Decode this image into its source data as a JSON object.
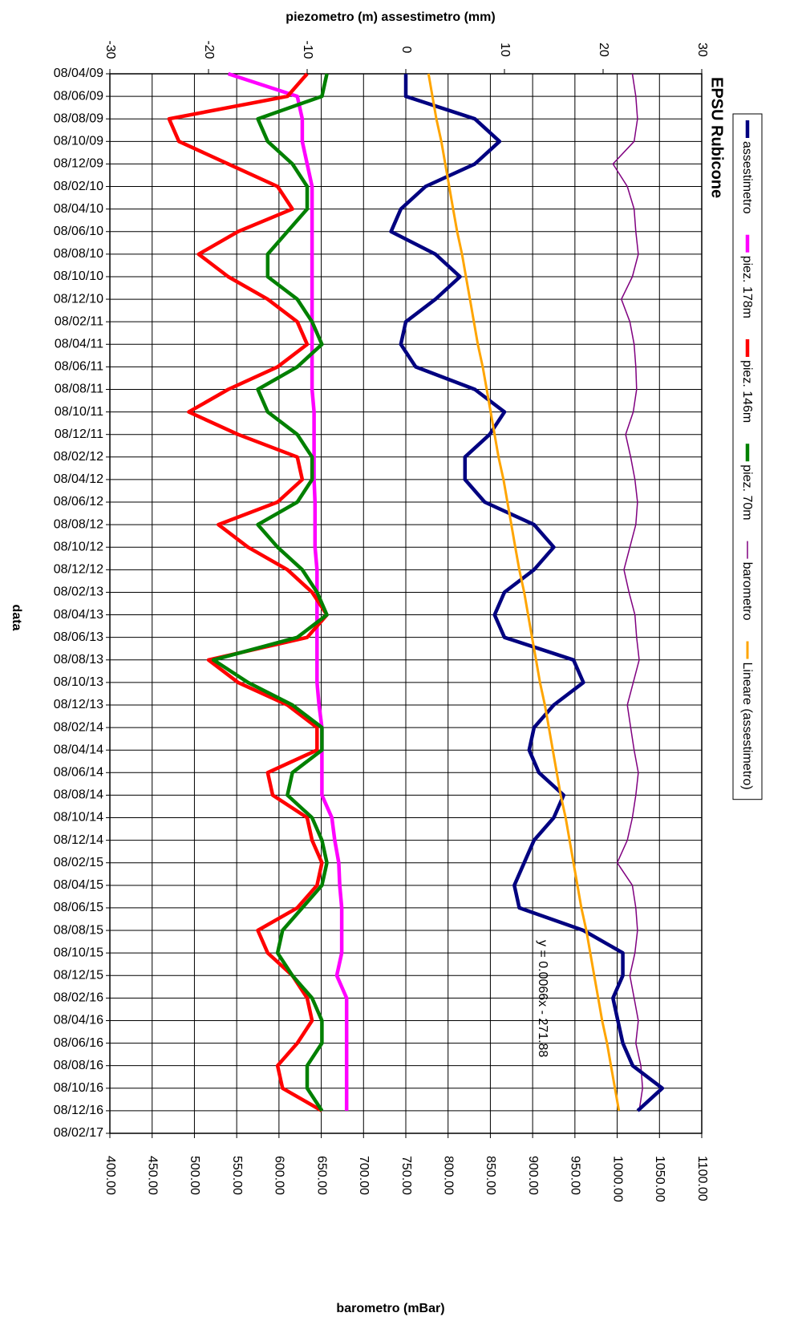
{
  "chart_data": {
    "type": "line",
    "title": "EPSU Rubicone",
    "x_label": "data",
    "y_label": "piezometro (m) assestimetro (mm)",
    "y2_label": "barometro (mBar)",
    "annotation": "y = 0.0066x - 271.88",
    "categories": [
      "08/04/09",
      "08/06/09",
      "08/08/09",
      "08/10/09",
      "08/12/09",
      "08/02/10",
      "08/04/10",
      "08/06/10",
      "08/08/10",
      "08/10/10",
      "08/12/10",
      "08/02/11",
      "08/04/11",
      "08/06/11",
      "08/08/11",
      "08/10/11",
      "08/12/11",
      "08/02/12",
      "08/04/12",
      "08/06/12",
      "08/08/12",
      "08/10/12",
      "08/12/12",
      "08/02/13",
      "08/04/13",
      "08/06/13",
      "08/08/13",
      "08/10/13",
      "08/12/13",
      "08/02/14",
      "08/04/14",
      "08/06/14",
      "08/08/14",
      "08/10/14",
      "08/12/14",
      "08/02/15",
      "08/04/15",
      "08/06/15",
      "08/08/15",
      "08/10/15",
      "08/12/15",
      "08/02/16",
      "08/04/16",
      "08/06/16",
      "08/08/16",
      "08/10/16",
      "08/12/16",
      "08/02/17"
    ],
    "ylim": [
      -30,
      30
    ],
    "yticks": [
      -30,
      -20,
      -10,
      0,
      10,
      20,
      30
    ],
    "y2lim": [
      400,
      1100
    ],
    "y2ticks": [
      {
        "value": 400,
        "label": "400.00"
      },
      {
        "value": 450,
        "label": "450.00"
      },
      {
        "value": 500,
        "label": "500.00"
      },
      {
        "value": 550,
        "label": "550.00"
      },
      {
        "value": 600,
        "label": "600.00"
      },
      {
        "value": 650,
        "label": "650.00"
      },
      {
        "value": 700,
        "label": "700.00"
      },
      {
        "value": 750,
        "label": "750.00"
      },
      {
        "value": 800,
        "label": "800.00"
      },
      {
        "value": 850,
        "label": "850.00"
      },
      {
        "value": 900,
        "label": "900.00"
      },
      {
        "value": 950,
        "label": "950.00"
      },
      {
        "value": 1000,
        "label": "1000.00"
      },
      {
        "value": 1050,
        "label": "1050.00"
      },
      {
        "value": 1100,
        "label": "1100.00"
      }
    ],
    "grid": true,
    "legend": "right",
    "series": [
      {
        "name": "assestimetro",
        "color": "#000080",
        "values": [
          0,
          0,
          7,
          9.5,
          7,
          2,
          -0.5,
          -1.5,
          3,
          5.5,
          3,
          0,
          -0.5,
          1,
          7,
          10,
          8.5,
          6,
          6,
          8,
          13,
          15,
          13,
          10,
          9,
          10,
          17,
          18,
          15,
          13,
          12.5,
          13.5,
          16,
          15,
          13,
          12,
          11,
          11.5,
          18,
          22,
          22,
          21,
          21.5,
          22,
          23,
          26,
          23.5,
          null
        ]
      },
      {
        "name": "piez. 178m",
        "color": "#ff00ff",
        "values": [
          -18,
          -11,
          -10.5,
          -10.5,
          -10,
          -9.5,
          -9.5,
          -9.5,
          -9.5,
          -9.5,
          -9.5,
          -9.5,
          -9.5,
          -9.5,
          -9.5,
          -9.3,
          -9.3,
          -9.3,
          -9.3,
          -9.2,
          -9.2,
          -9.2,
          -9,
          -9,
          -9,
          -9,
          -9,
          -9,
          -8.8,
          -8.5,
          -8.5,
          -8.5,
          -8.5,
          -7.5,
          -7.2,
          -6.8,
          -6.7,
          -6.5,
          -6.5,
          -6.5,
          -7,
          -6,
          -6,
          -6,
          -6,
          -6,
          -6,
          null
        ]
      },
      {
        "name": "piez. 146m",
        "color": "#ff0000",
        "values": [
          -10,
          -12,
          -24,
          -23,
          -18,
          -13,
          -11.5,
          -17,
          -21,
          -18,
          -14,
          -11,
          -10,
          -13,
          -18,
          -22,
          -17,
          -11,
          -10.5,
          -13,
          -19,
          -16,
          -12,
          -9.5,
          -8,
          -10,
          -20,
          -17,
          -12,
          -9,
          -9,
          -14,
          -13.5,
          -10,
          -9.5,
          -8.5,
          -9,
          -11,
          -15,
          -14,
          -11.5,
          -10,
          -9.5,
          -11,
          -13,
          -12.5,
          -8.5,
          null
        ]
      },
      {
        "name": "piez. 70m",
        "color": "#008000",
        "values": [
          -8,
          -8.5,
          -15,
          -14,
          -11.5,
          -10,
          -10,
          -12,
          -14,
          -14,
          -11,
          -9.5,
          -8.5,
          -11,
          -15,
          -14,
          -11,
          -9.5,
          -9.5,
          -11,
          -15,
          -13,
          -10.5,
          -9,
          -8,
          -11,
          -19.5,
          -16,
          -11.5,
          -8.5,
          -8.5,
          -11.5,
          -12,
          -9.5,
          -8.5,
          -8,
          -8.5,
          -10.5,
          -12.5,
          -13,
          -11.5,
          -9.5,
          -8.5,
          -8.5,
          -10,
          -10,
          -8.5,
          null
        ]
      },
      {
        "name": "barometro",
        "color": "#800080",
        "axis": "y2",
        "values": [
          1018,
          1022,
          1024,
          1020,
          995,
          1012,
          1020,
          1022,
          1025,
          1018,
          1005,
          1015,
          1020,
          1022,
          1023,
          1019,
          1010,
          1016,
          1021,
          1024,
          1022,
          1015,
          1008,
          1014,
          1021,
          1023,
          1026,
          1019,
          1012,
          1016,
          1020,
          1025,
          1022,
          1018,
          1012,
          1000,
          1018,
          1022,
          1024,
          1021,
          1015,
          1020,
          1025,
          1022,
          1028,
          1030,
          1026,
          null
        ]
      },
      {
        "name": "Lineare (assestimetro)",
        "color": "#ffa500",
        "values": [
          2.3,
          2.7,
          3.1,
          3.6,
          4.0,
          4.4,
          4.8,
          5.2,
          5.7,
          6.1,
          6.5,
          6.9,
          7.3,
          7.8,
          8.2,
          8.6,
          9.0,
          9.4,
          9.9,
          10.3,
          10.7,
          11.1,
          11.5,
          12.0,
          12.4,
          12.8,
          13.2,
          13.6,
          14.1,
          14.5,
          14.9,
          15.3,
          15.7,
          16.2,
          16.6,
          17.0,
          17.4,
          17.8,
          18.3,
          18.7,
          19.1,
          19.5,
          19.9,
          20.4,
          20.8,
          21.2,
          21.6,
          null
        ]
      }
    ]
  }
}
